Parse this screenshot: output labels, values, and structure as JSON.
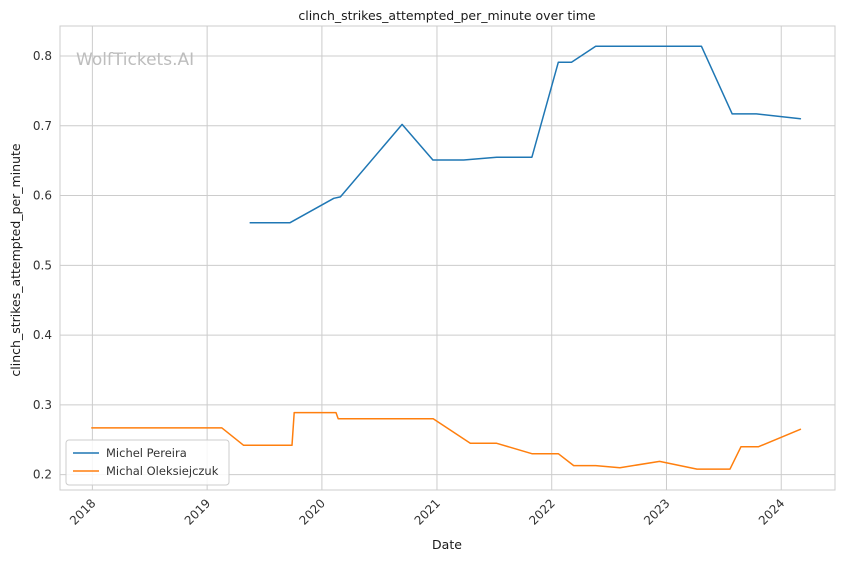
{
  "chart_data": {
    "type": "line",
    "title": "clinch_strikes_attempted_per_minute over time",
    "xlabel": "Date",
    "ylabel": "clinch_strikes_attempted_per_minute",
    "watermark": "WolfTickets.AI",
    "x_ticks": [
      "2018",
      "2019",
      "2020",
      "2021",
      "2022",
      "2023",
      "2024"
    ],
    "y_ticks": [
      "0.2",
      "0.3",
      "0.4",
      "0.5",
      "0.6",
      "0.7",
      "0.8"
    ],
    "xlim": [
      "2017-09-20",
      "2024-06-20"
    ],
    "ylim": [
      0.178,
      0.843
    ],
    "grid": true,
    "legend_position": "lower-left",
    "series": [
      {
        "name": "Michel Pereira",
        "color": "#1f77b4",
        "points": [
          {
            "x": "2019-05-18",
            "y": 0.561
          },
          {
            "x": "2019-09-21",
            "y": 0.561
          },
          {
            "x": "2020-02-08",
            "y": 0.596
          },
          {
            "x": "2020-02-29",
            "y": 0.598
          },
          {
            "x": "2020-09-12",
            "y": 0.702
          },
          {
            "x": "2020-12-19",
            "y": 0.651
          },
          {
            "x": "2021-03-27",
            "y": 0.651
          },
          {
            "x": "2021-07-10",
            "y": 0.655
          },
          {
            "x": "2021-10-30",
            "y": 0.655
          },
          {
            "x": "2022-01-22",
            "y": 0.791
          },
          {
            "x": "2022-03-05",
            "y": 0.791
          },
          {
            "x": "2022-05-21",
            "y": 0.814
          },
          {
            "x": "2023-04-22",
            "y": 0.814
          },
          {
            "x": "2023-07-29",
            "y": 0.717
          },
          {
            "x": "2023-10-14",
            "y": 0.717
          },
          {
            "x": "2024-03-02",
            "y": 0.71
          }
        ]
      },
      {
        "name": "Michal Oleksiejczuk",
        "color": "#ff7f0e",
        "points": [
          {
            "x": "2017-12-30",
            "y": 0.267
          },
          {
            "x": "2019-02-17",
            "y": 0.267
          },
          {
            "x": "2019-04-27",
            "y": 0.242
          },
          {
            "x": "2019-09-28",
            "y": 0.242
          },
          {
            "x": "2019-10-05",
            "y": 0.289
          },
          {
            "x": "2020-02-15",
            "y": 0.289
          },
          {
            "x": "2020-02-22",
            "y": 0.28
          },
          {
            "x": "2020-12-20",
            "y": 0.28
          },
          {
            "x": "2021-04-17",
            "y": 0.245
          },
          {
            "x": "2021-07-10",
            "y": 0.245
          },
          {
            "x": "2021-10-30",
            "y": 0.23
          },
          {
            "x": "2022-01-22",
            "y": 0.23
          },
          {
            "x": "2022-03-12",
            "y": 0.213
          },
          {
            "x": "2022-05-21",
            "y": 0.213
          },
          {
            "x": "2022-08-06",
            "y": 0.21
          },
          {
            "x": "2022-12-10",
            "y": 0.219
          },
          {
            "x": "2023-04-08",
            "y": 0.208
          },
          {
            "x": "2023-07-22",
            "y": 0.208
          },
          {
            "x": "2023-08-26",
            "y": 0.24
          },
          {
            "x": "2023-10-21",
            "y": 0.24
          },
          {
            "x": "2024-03-02",
            "y": 0.265
          }
        ]
      }
    ]
  }
}
